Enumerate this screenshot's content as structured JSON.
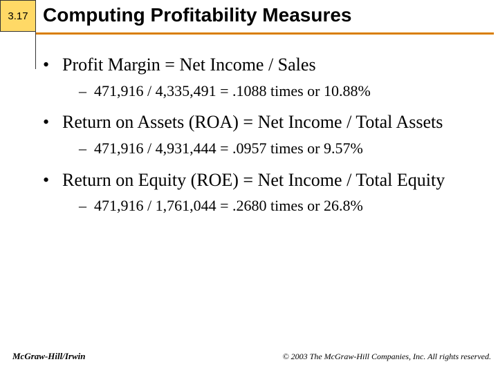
{
  "slide_number": "3.17",
  "title": "Computing Profitability Measures",
  "colors": {
    "slide_number_bg": "#ffd966",
    "underline": "#d97e00",
    "background": "#ffffff",
    "text": "#000000"
  },
  "bullets": [
    {
      "main": "Profit Margin = Net Income / Sales",
      "sub": "471,916 / 4,335,491 = .1088 times or 10.88%"
    },
    {
      "main": "Return on Assets (ROA) = Net Income / Total Assets",
      "sub": "471,916 / 4,931,444 = .0957 times or 9.57%"
    },
    {
      "main": "Return on Equity (ROE) = Net Income / Total Equity",
      "sub": "471,916 / 1,761,044 = .2680 times or 26.8%"
    }
  ],
  "footer": {
    "left": "McGraw-Hill/Irwin",
    "right": "© 2003 The McGraw-Hill Companies, Inc. All rights reserved."
  }
}
